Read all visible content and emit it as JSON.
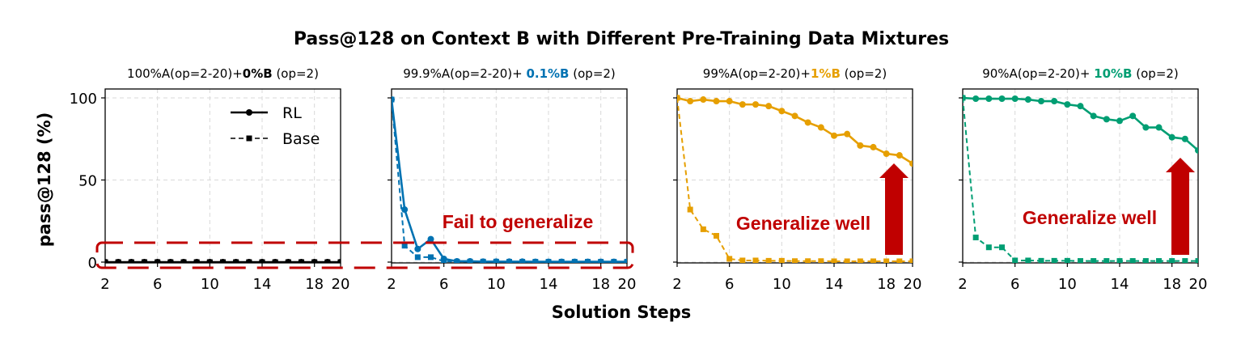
{
  "chart_data": {
    "type": "line",
    "title": "Pass@128 on Context B with Different Pre-Training Data Mixtures",
    "xlabel": "Solution Steps",
    "ylabel": "pass@128 (%)",
    "xlim": [
      2,
      20
    ],
    "ylim": [
      0,
      100
    ],
    "xticks": [
      "2",
      "6",
      "10",
      "14",
      "18",
      "20"
    ],
    "yticks": [
      "0",
      "50",
      "100"
    ],
    "grid": true,
    "legend": {
      "position": "top-right of first panel",
      "entries": [
        "RL",
        "Base"
      ]
    },
    "x": [
      2,
      3,
      4,
      5,
      6,
      7,
      8,
      9,
      10,
      11,
      12,
      13,
      14,
      15,
      16,
      17,
      18,
      19,
      20
    ],
    "panels": [
      {
        "subtitle_parts": [
          "100%A(op=2-20)+",
          "0%B",
          " (op=2)"
        ],
        "color": "#000000",
        "series": [
          {
            "name": "RL",
            "style": "solid",
            "marker": "circle",
            "values": [
              0,
              0,
              0,
              0,
              0,
              0,
              0,
              0,
              0,
              0,
              0,
              0,
              0,
              0,
              0,
              0,
              0,
              0,
              0
            ]
          },
          {
            "name": "Base",
            "style": "dashed",
            "marker": "square",
            "values": [
              0,
              0,
              0,
              0,
              0,
              0,
              0,
              0,
              0,
              0,
              0,
              0,
              0,
              0,
              0,
              0,
              0,
              0,
              0
            ]
          }
        ]
      },
      {
        "subtitle_parts": [
          "99.9%A(op=2-20)+ ",
          "0.1%B",
          " (op=2)"
        ],
        "color": "#0072b2",
        "annotation": "Fail to generalize",
        "series": [
          {
            "name": "RL",
            "style": "solid",
            "marker": "circle",
            "values": [
              99,
              32,
              8,
              14,
              2,
              0.5,
              0.5,
              0.3,
              0.3,
              0.3,
              0.3,
              0.2,
              0.2,
              0.2,
              0.2,
              0.2,
              0.2,
              0.2,
              0.2
            ]
          },
          {
            "name": "Base",
            "style": "dashed",
            "marker": "square",
            "values": [
              99,
              10,
              3,
              3,
              0.5,
              0.3,
              0.3,
              0.3,
              0.3,
              0.2,
              0.2,
              0.2,
              0.2,
              0.2,
              0.2,
              0.2,
              0.2,
              0.2,
              0.2
            ]
          }
        ]
      },
      {
        "subtitle_parts": [
          "99%A(op=2-20)+",
          "1%B",
          " (op=2)"
        ],
        "color": "#e69f00",
        "annotation": "Generalize well",
        "series": [
          {
            "name": "RL",
            "style": "solid",
            "marker": "circle",
            "values": [
              100,
              98,
              99,
              98,
              98,
              96,
              96,
              95,
              92,
              89,
              85,
              82,
              77,
              78,
              71,
              70,
              66,
              65,
              60
            ]
          },
          {
            "name": "Base",
            "style": "dashed",
            "marker": "square",
            "values": [
              100,
              32,
              20,
              16,
              2,
              1,
              1,
              0.8,
              0.8,
              0.6,
              0.6,
              0.6,
              0.5,
              0.5,
              0.5,
              0.5,
              0.5,
              0.5,
              0.5
            ]
          }
        ]
      },
      {
        "subtitle_parts": [
          "90%A(op=2-20)+ ",
          "10%B",
          " (op=2)"
        ],
        "color": "#009e73",
        "annotation": "Generalize well",
        "series": [
          {
            "name": "RL",
            "style": "solid",
            "marker": "circle",
            "values": [
              100,
              99.5,
              99.5,
              99.5,
              99.5,
              99,
              98,
              98,
              96,
              95,
              89,
              87,
              86,
              89,
              82,
              82,
              76,
              75,
              68
            ]
          },
          {
            "name": "Base",
            "style": "dashed",
            "marker": "square",
            "values": [
              100,
              15,
              9,
              9,
              1,
              1,
              0.8,
              0.8,
              0.8,
              0.7,
              0.7,
              0.7,
              0.7,
              0.7,
              0.7,
              0.7,
              0.7,
              0.7,
              0.7
            ]
          }
        ]
      }
    ]
  },
  "colors": {
    "annotation": "#c00000"
  }
}
